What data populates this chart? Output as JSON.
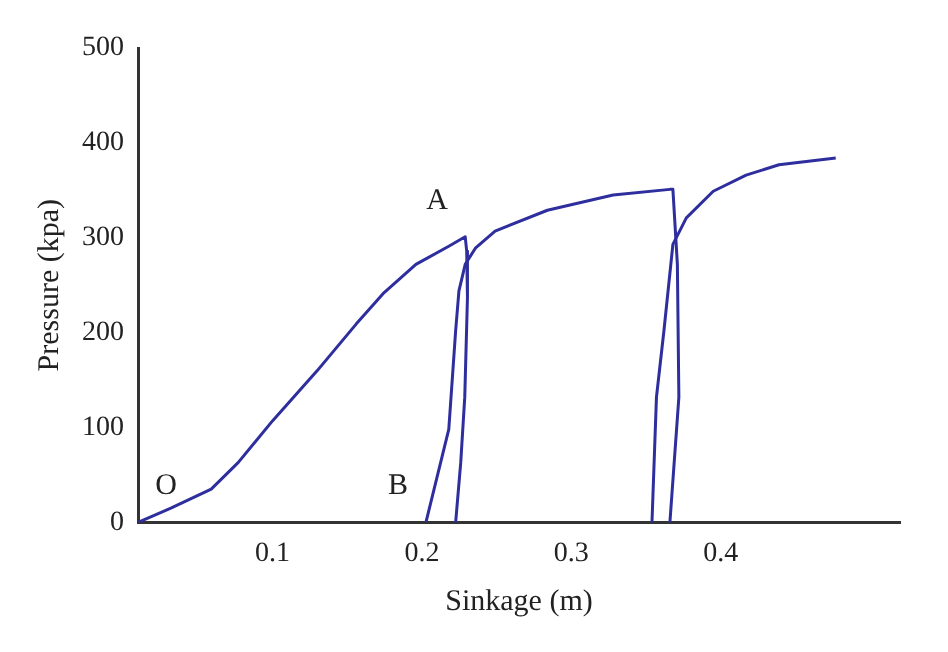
{
  "chart_data": {
    "type": "line",
    "xlabel": "Sinkage (m)",
    "ylabel": "Pressure (kpa)",
    "xlim": [
      0.01,
      0.52
    ],
    "xticks": [
      0.1,
      0.2,
      0.3,
      0.4
    ],
    "ylim": [
      0,
      500
    ],
    "yticks": [
      0,
      100,
      200,
      300,
      400,
      500
    ],
    "grid": false,
    "legend": false,
    "marker": "none",
    "line_style": "solid",
    "series": [
      {
        "color": "#2e2e9e",
        "x": [
          0.01,
          0.032,
          0.059,
          0.077,
          0.1,
          0.13,
          0.156,
          0.174,
          0.196,
          0.218,
          0.229,
          0.23,
          0.2305,
          0.2287,
          0.226,
          0.2226
        ],
        "values": [
          0,
          15,
          35,
          63,
          107,
          160,
          209,
          241,
          272,
          291,
          301,
          286,
          237,
          132,
          63,
          0
        ]
      },
      {
        "color": "#2e2e9e",
        "x": [
          0.2027,
          0.218,
          0.2226,
          0.2248,
          0.229,
          0.2358,
          0.249,
          0.284,
          0.328,
          0.366,
          0.368,
          0.371,
          0.372,
          0.366
        ],
        "values": [
          0,
          98,
          202,
          244,
          272,
          289,
          307,
          329,
          345,
          351,
          351,
          272,
          132,
          0
        ]
      },
      {
        "color": "#2e2e9e",
        "x": [
          0.354,
          0.357,
          0.362,
          0.368,
          0.377,
          0.395,
          0.417,
          0.439,
          0.477
        ],
        "values": [
          0,
          132,
          202,
          293,
          321,
          349,
          366,
          377,
          384
        ]
      }
    ],
    "annotations": [
      {
        "text": "O",
        "x": 0.01,
        "y": 0
      },
      {
        "text": "A",
        "x": 0.229,
        "y": 301
      },
      {
        "text": "B",
        "x": 0.2027,
        "y": 0
      }
    ]
  }
}
